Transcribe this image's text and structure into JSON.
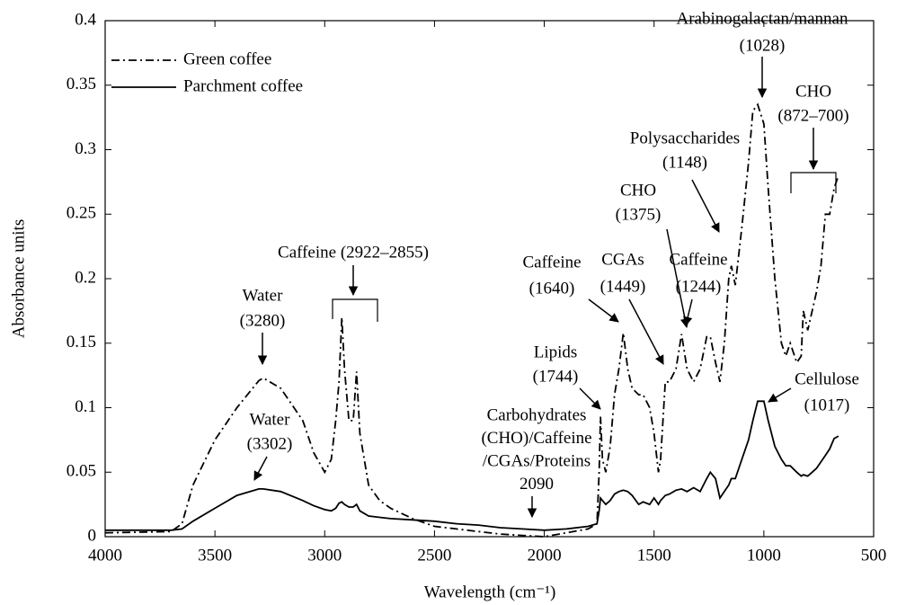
{
  "chart_data": {
    "type": "line",
    "xlabel": "Wavelength (cm⁻¹)",
    "ylabel": "Absorbance units",
    "xlim": [
      4000,
      500
    ],
    "xticks": [
      4000,
      3500,
      3000,
      2500,
      2000,
      1500,
      1000,
      500
    ],
    "ylim": [
      0,
      0.4
    ],
    "yticks": [
      0,
      0.05,
      0.1,
      0.15,
      0.2,
      0.25,
      0.3,
      0.35,
      0.4
    ],
    "legend": "upper left",
    "x": [
      4000,
      3700,
      3650,
      3600,
      3500,
      3400,
      3300,
      3280,
      3200,
      3100,
      3050,
      3000,
      2970,
      2950,
      2935,
      2922,
      2910,
      2890,
      2870,
      2855,
      2840,
      2800,
      2750,
      2700,
      2600,
      2500,
      2400,
      2300,
      2200,
      2100,
      2000,
      1900,
      1800,
      1760,
      1750,
      1744,
      1735,
      1720,
      1700,
      1680,
      1660,
      1640,
      1620,
      1600,
      1570,
      1550,
      1520,
      1500,
      1480,
      1470,
      1449,
      1430,
      1400,
      1375,
      1350,
      1320,
      1290,
      1260,
      1244,
      1220,
      1200,
      1180,
      1160,
      1148,
      1130,
      1100,
      1070,
      1050,
      1028,
      1000,
      980,
      950,
      920,
      900,
      880,
      850,
      830,
      820,
      800,
      780,
      760,
      740,
      720,
      700,
      680,
      660
    ],
    "series": [
      {
        "name": "Green coffee",
        "color": "#000000",
        "linestyle": "dashdot",
        "values": [
          0.003,
          0.004,
          0.01,
          0.04,
          0.075,
          0.1,
          0.121,
          0.123,
          0.115,
          0.09,
          0.065,
          0.05,
          0.06,
          0.09,
          0.12,
          0.17,
          0.13,
          0.09,
          0.09,
          0.128,
          0.08,
          0.04,
          0.028,
          0.022,
          0.014,
          0.008,
          0.006,
          0.004,
          0.002,
          0.001,
          0.0,
          0.003,
          0.006,
          0.01,
          0.05,
          0.093,
          0.06,
          0.05,
          0.07,
          0.11,
          0.13,
          0.158,
          0.13,
          0.115,
          0.11,
          0.11,
          0.1,
          0.08,
          0.05,
          0.06,
          0.12,
          0.12,
          0.13,
          0.157,
          0.13,
          0.12,
          0.13,
          0.155,
          0.155,
          0.135,
          0.12,
          0.15,
          0.2,
          0.21,
          0.195,
          0.24,
          0.29,
          0.33,
          0.335,
          0.32,
          0.27,
          0.2,
          0.15,
          0.14,
          0.15,
          0.135,
          0.14,
          0.175,
          0.16,
          0.175,
          0.19,
          0.21,
          0.25,
          0.25,
          0.27,
          0.28
        ]
      },
      {
        "name": "Parchment coffee",
        "color": "#000000",
        "linestyle": "solid",
        "values": [
          0.005,
          0.005,
          0.006,
          0.012,
          0.022,
          0.032,
          0.037,
          0.037,
          0.035,
          0.028,
          0.024,
          0.021,
          0.02,
          0.022,
          0.026,
          0.027,
          0.025,
          0.023,
          0.023,
          0.025,
          0.02,
          0.016,
          0.015,
          0.014,
          0.013,
          0.012,
          0.01,
          0.009,
          0.007,
          0.006,
          0.005,
          0.006,
          0.008,
          0.01,
          0.02,
          0.03,
          0.028,
          0.025,
          0.028,
          0.033,
          0.035,
          0.036,
          0.035,
          0.032,
          0.025,
          0.027,
          0.025,
          0.03,
          0.025,
          0.028,
          0.032,
          0.033,
          0.036,
          0.037,
          0.035,
          0.038,
          0.035,
          0.045,
          0.05,
          0.045,
          0.03,
          0.035,
          0.04,
          0.045,
          0.045,
          0.06,
          0.075,
          0.09,
          0.105,
          0.105,
          0.09,
          0.07,
          0.06,
          0.055,
          0.055,
          0.05,
          0.047,
          0.048,
          0.047,
          0.05,
          0.053,
          0.058,
          0.063,
          0.068,
          0.076,
          0.078
        ]
      }
    ],
    "annotations": [
      {
        "lines": [
          "Arabinogalactan/mannan",
          "(1028)"
        ]
      },
      {
        "lines": [
          "CHO",
          "(872–700)"
        ]
      },
      {
        "lines": [
          "Polysaccharides",
          "(1148)"
        ]
      },
      {
        "lines": [
          "CHO",
          "(1375)"
        ]
      },
      {
        "lines": [
          "CGAs",
          "(1449)"
        ]
      },
      {
        "lines": [
          "Caffeine",
          "(1244)"
        ]
      },
      {
        "lines": [
          "Caffeine",
          "(1640)"
        ]
      },
      {
        "lines": [
          "Lipids",
          "(1744)"
        ]
      },
      {
        "lines": [
          "Carbohydrates",
          "(CHO)/Caffeine",
          "/CGAs/Proteins",
          "2090"
        ]
      },
      {
        "lines": [
          "Cellulose",
          "(1017)"
        ]
      },
      {
        "lines": [
          "Caffeine (2922–2855)"
        ]
      },
      {
        "lines": [
          "Water",
          "(3280)"
        ]
      },
      {
        "lines": [
          "Water",
          "(3302)"
        ]
      }
    ]
  }
}
